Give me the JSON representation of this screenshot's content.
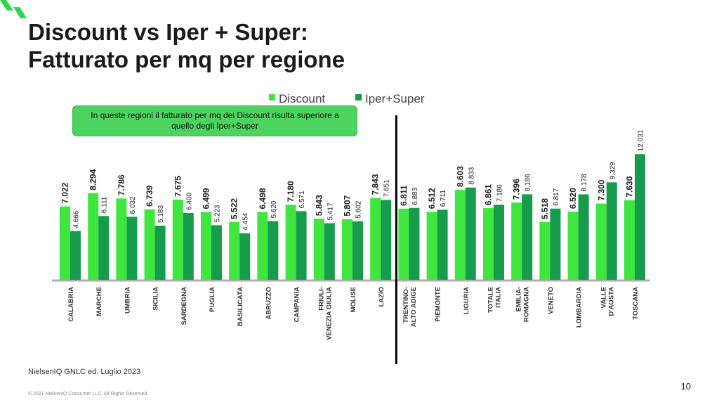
{
  "title_line1": "Discount vs Iper + Super:",
  "title_line2": "Fatturato per mq per regione",
  "callout": "In queste regioni il fatturato per mq dei Discount risulta superiore a quello degli Iper+Super",
  "source": "NielsenIQ GNLC ed. Luglio 2023",
  "copyright": "© 2021 NielsenIQ Consumer LLC. All Rights Reserved.",
  "page_number": "10",
  "colors": {
    "discount": "#3ee63e",
    "iper_super": "#169c4c",
    "brand": "#2bd94a"
  },
  "chart_data": {
    "type": "bar",
    "categories": [
      "CALABRIA",
      "MARCHE",
      "UMBRIA",
      "SICILIA",
      "SARDEGNA",
      "PUGLIA",
      "BASILICATA",
      "ABRUZZO",
      "CAMPANIA",
      "FRIULI-VENEZIA GIULIA",
      "MOLISE",
      "LAZIO",
      "TRENTINO-ALTO ADIGE",
      "PIEMONTE",
      "LIGURIA",
      "TOTALE ITALIA",
      "EMILIA-ROMAGNA",
      "VENETO",
      "LOMBARDIA",
      "VALLE D'AOSTA",
      "TOSCANA"
    ],
    "series": [
      {
        "name": "Discount",
        "values": [
          7022,
          8294,
          7786,
          6739,
          7675,
          6499,
          5522,
          6498,
          7180,
          5843,
          5807,
          7843,
          6811,
          6512,
          8603,
          6861,
          7396,
          5518,
          6520,
          7300,
          7630
        ],
        "labels": [
          "7.022",
          "8.294",
          "7.786",
          "6.739",
          "7.675",
          "6.499",
          "5.522",
          "6.498",
          "7.180",
          "5.843",
          "5.807",
          "7.843",
          "6.811",
          "6.512",
          "8.603",
          "6.861",
          "7.396",
          "5.518",
          "6.520",
          "7.300",
          "7.630"
        ]
      },
      {
        "name": "Iper+Super",
        "values": [
          4666,
          6111,
          6032,
          5183,
          6400,
          5223,
          4454,
          5620,
          6571,
          5417,
          5602,
          7651,
          6883,
          6711,
          8833,
          7186,
          8186,
          6817,
          8178,
          9329,
          12031
        ],
        "labels": [
          "4.666",
          "6.111",
          "6.032",
          "5.183",
          "6.400",
          "5.223",
          "4.454",
          "5.620",
          "6.571",
          "5.417",
          "5.602",
          "7.651",
          "6.883",
          "6.711",
          "8.833",
          "7.186",
          "8.186",
          "6.817",
          "8.178",
          "9.329",
          "12.031"
        ]
      }
    ],
    "ylim": [
      0,
      14000
    ],
    "legend_position": "top",
    "divider_after_category": "LAZIO"
  }
}
